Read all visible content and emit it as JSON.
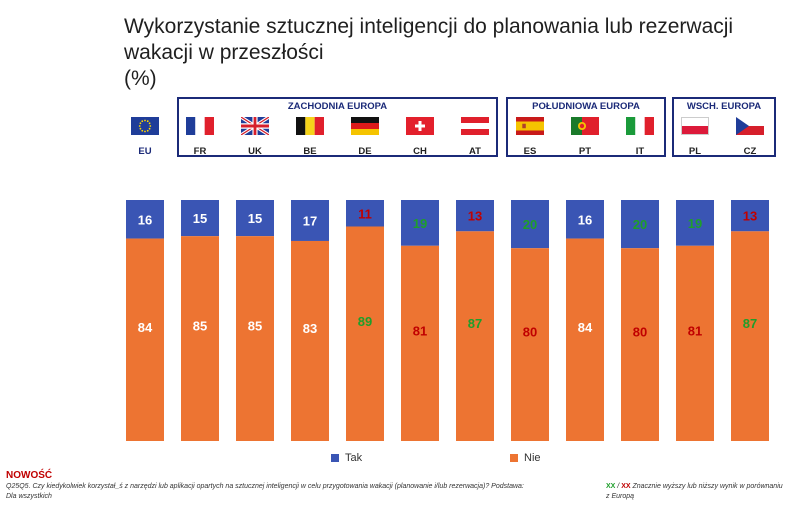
{
  "title": {
    "line1": "Wykorzystanie sztucznej inteligencji do planowania lub rezerwacji",
    "line2": "wakacji w przeszłości",
    "line3": "(%)"
  },
  "groups": [
    {
      "name": "ZACHODNIA EUROPA"
    },
    {
      "name": "POŁUDNIOWA EUROPA"
    },
    {
      "name": "WSCH. EUROPA"
    }
  ],
  "countries": [
    {
      "code": "EU",
      "flag": "eu-flag"
    },
    {
      "code": "FR",
      "flag": "france-flag"
    },
    {
      "code": "UK",
      "flag": "uk-flag"
    },
    {
      "code": "BE",
      "flag": "belgium-flag"
    },
    {
      "code": "DE",
      "flag": "germany-flag"
    },
    {
      "code": "CH",
      "flag": "switzerland-flag"
    },
    {
      "code": "AT",
      "flag": "austria-flag"
    },
    {
      "code": "ES",
      "flag": "spain-flag"
    },
    {
      "code": "PT",
      "flag": "portugal-flag"
    },
    {
      "code": "IT",
      "flag": "italy-flag"
    },
    {
      "code": "PL",
      "flag": "poland-flag"
    },
    {
      "code": "CZ",
      "flag": "czechia-flag"
    }
  ],
  "chart_data": {
    "type": "bar",
    "stacked": true,
    "categories": [
      "EU",
      "FR",
      "UK",
      "BE",
      "DE",
      "CH",
      "AT",
      "ES",
      "PT",
      "IT",
      "PL",
      "CZ"
    ],
    "series": [
      {
        "name": "Tak",
        "color": "#3a55b4",
        "values": [
          16,
          15,
          15,
          17,
          11,
          19,
          13,
          20,
          16,
          20,
          19,
          13
        ],
        "label_colors": [
          "#ffffff",
          "#ffffff",
          "#ffffff",
          "#ffffff",
          "#c00000",
          "#1e9e2b",
          "#c00000",
          "#1e9e2b",
          "#ffffff",
          "#1e9e2b",
          "#1e9e2b",
          "#c00000"
        ]
      },
      {
        "name": "Nie",
        "color": "#ed7432",
        "values": [
          84,
          85,
          85,
          83,
          89,
          81,
          87,
          80,
          84,
          80,
          81,
          87
        ],
        "label_colors": [
          "#ffffff",
          "#ffffff",
          "#ffffff",
          "#ffffff",
          "#1e9e2b",
          "#c00000",
          "#1e9e2b",
          "#c00000",
          "#ffffff",
          "#c00000",
          "#c00000",
          "#1e9e2b"
        ]
      }
    ],
    "ylim": [
      0,
      100
    ],
    "legend_position": "bottom"
  },
  "legend": {
    "tak": "Tak",
    "nie": "Nie"
  },
  "footer": {
    "new_label": "NOWOŚĆ",
    "question": "Q25Q5. Czy kiedykolwiek korzystał_ś z narzędzi lub aplikacji opartych na sztucznej inteligencji w celu przygotowania wakacji (planowanie i/lub rezerwacja)? Podstawa: Dla wszystkich",
    "note_xx_green": "XX",
    "note_sep": " / ",
    "note_xx_red": "XX",
    "note_text": " Znacznie wyższy lub niższy wynik w porównaniu z Europą"
  }
}
